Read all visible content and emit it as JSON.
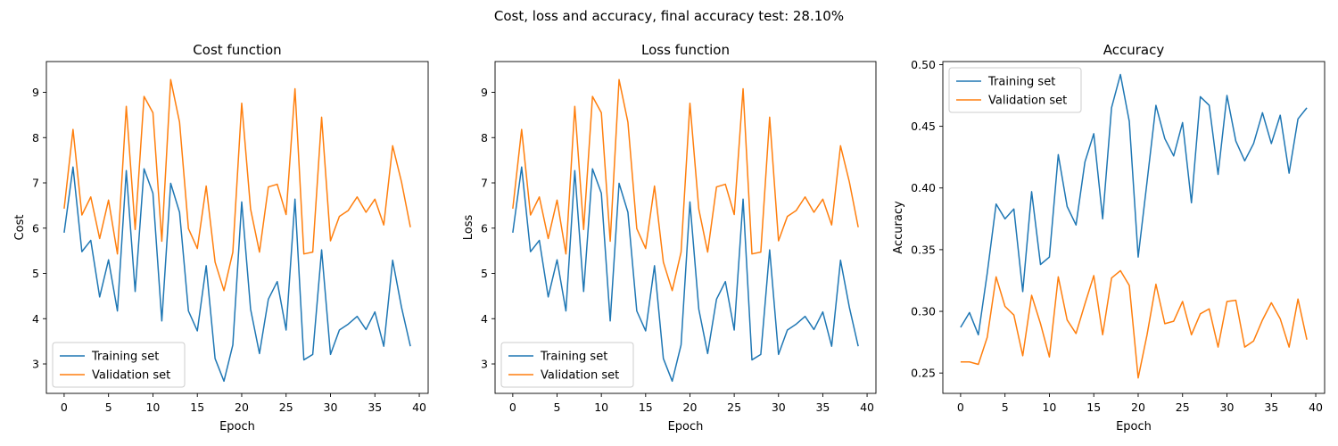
{
  "figure": {
    "suptitle": "Cost, loss and accuracy, final accuracy test: 28.10%"
  },
  "colors": {
    "training": "#1f77b4",
    "validation": "#ff7f0e"
  },
  "chart_data": [
    {
      "type": "line",
      "title": "Cost function",
      "xlabel": "Epoch",
      "ylabel": "Cost",
      "xlim": [
        -2,
        41
      ],
      "ylim": [
        2.35,
        9.68
      ],
      "xticks": [
        0,
        5,
        10,
        15,
        20,
        25,
        30,
        35,
        40
      ],
      "yticks": [
        3,
        4,
        5,
        6,
        7,
        8,
        9
      ],
      "tick_decimals": 0,
      "legend_position": "lower-left",
      "grid": false,
      "x": [
        0,
        1,
        2,
        3,
        4,
        5,
        6,
        7,
        8,
        9,
        10,
        11,
        12,
        13,
        14,
        15,
        16,
        17,
        18,
        19,
        20,
        21,
        22,
        23,
        24,
        25,
        26,
        27,
        28,
        29,
        30,
        31,
        32,
        33,
        34,
        35,
        36,
        37,
        38,
        39
      ],
      "series": [
        {
          "name": "Training set",
          "values": [
            5.9,
            7.35,
            5.48,
            5.73,
            4.48,
            5.3,
            4.17,
            7.27,
            4.6,
            7.31,
            6.77,
            3.95,
            6.99,
            6.35,
            4.17,
            3.73,
            5.17,
            3.12,
            2.62,
            3.42,
            6.58,
            4.21,
            3.23,
            4.43,
            4.82,
            3.75,
            6.64,
            3.09,
            3.21,
            5.52,
            3.21,
            3.75,
            3.88,
            4.05,
            3.76,
            4.15,
            3.39,
            5.29,
            4.25,
            3.39
          ]
        },
        {
          "name": "Validation set",
          "values": [
            6.43,
            8.18,
            6.29,
            6.69,
            5.77,
            6.62,
            5.43,
            8.69,
            5.97,
            8.91,
            8.55,
            5.71,
            9.28,
            8.34,
            5.99,
            5.55,
            6.93,
            5.25,
            4.62,
            5.47,
            8.76,
            6.42,
            5.47,
            6.91,
            6.97,
            6.3,
            9.08,
            5.43,
            5.47,
            8.45,
            5.72,
            6.26,
            6.39,
            6.69,
            6.35,
            6.64,
            6.07,
            7.82,
            7.02,
            6.02
          ]
        }
      ]
    },
    {
      "type": "line",
      "title": "Loss function",
      "xlabel": "Epoch",
      "ylabel": "Loss",
      "xlim": [
        -2,
        41
      ],
      "ylim": [
        2.35,
        9.68
      ],
      "xticks": [
        0,
        5,
        10,
        15,
        20,
        25,
        30,
        35,
        40
      ],
      "yticks": [
        3,
        4,
        5,
        6,
        7,
        8,
        9
      ],
      "tick_decimals": 0,
      "legend_position": "lower-left",
      "grid": false,
      "x": [
        0,
        1,
        2,
        3,
        4,
        5,
        6,
        7,
        8,
        9,
        10,
        11,
        12,
        13,
        14,
        15,
        16,
        17,
        18,
        19,
        20,
        21,
        22,
        23,
        24,
        25,
        26,
        27,
        28,
        29,
        30,
        31,
        32,
        33,
        34,
        35,
        36,
        37,
        38,
        39
      ],
      "series": [
        {
          "name": "Training set",
          "values": [
            5.9,
            7.35,
            5.48,
            5.73,
            4.48,
            5.3,
            4.17,
            7.27,
            4.6,
            7.31,
            6.77,
            3.95,
            6.99,
            6.35,
            4.17,
            3.73,
            5.17,
            3.12,
            2.62,
            3.42,
            6.58,
            4.21,
            3.23,
            4.43,
            4.82,
            3.75,
            6.64,
            3.09,
            3.21,
            5.52,
            3.21,
            3.75,
            3.88,
            4.05,
            3.76,
            4.15,
            3.39,
            5.29,
            4.25,
            3.39
          ]
        },
        {
          "name": "Validation set",
          "values": [
            6.43,
            8.18,
            6.29,
            6.69,
            5.77,
            6.62,
            5.43,
            8.69,
            5.97,
            8.91,
            8.55,
            5.71,
            9.28,
            8.34,
            5.99,
            5.55,
            6.93,
            5.25,
            4.62,
            5.47,
            8.76,
            6.42,
            5.47,
            6.91,
            6.97,
            6.3,
            9.08,
            5.43,
            5.47,
            8.45,
            5.72,
            6.26,
            6.39,
            6.69,
            6.35,
            6.64,
            6.07,
            7.82,
            7.02,
            6.02
          ]
        }
      ]
    },
    {
      "type": "line",
      "title": "Accuracy",
      "xlabel": "Epoch",
      "ylabel": "Accuracy",
      "xlim": [
        -2,
        41
      ],
      "ylim": [
        0.2335,
        0.5025
      ],
      "xticks": [
        0,
        5,
        10,
        15,
        20,
        25,
        30,
        35,
        40
      ],
      "yticks": [
        0.25,
        0.3,
        0.35,
        0.4,
        0.45,
        0.5
      ],
      "tick_decimals": 2,
      "legend_position": "upper-left",
      "grid": false,
      "x": [
        0,
        1,
        2,
        3,
        4,
        5,
        6,
        7,
        8,
        9,
        10,
        11,
        12,
        13,
        14,
        15,
        16,
        17,
        18,
        19,
        20,
        21,
        22,
        23,
        24,
        25,
        26,
        27,
        28,
        29,
        30,
        31,
        32,
        33,
        34,
        35,
        36,
        37,
        38,
        39
      ],
      "series": [
        {
          "name": "Training set",
          "values": [
            0.287,
            0.299,
            0.281,
            0.331,
            0.387,
            0.375,
            0.383,
            0.316,
            0.397,
            0.338,
            0.344,
            0.427,
            0.385,
            0.37,
            0.421,
            0.444,
            0.375,
            0.465,
            0.492,
            0.454,
            0.344,
            0.405,
            0.467,
            0.44,
            0.426,
            0.453,
            0.388,
            0.474,
            0.467,
            0.411,
            0.475,
            0.438,
            0.422,
            0.436,
            0.461,
            0.436,
            0.459,
            0.412,
            0.456,
            0.465
          ]
        },
        {
          "name": "Validation set",
          "values": [
            0.259,
            0.259,
            0.257,
            0.279,
            0.328,
            0.304,
            0.297,
            0.264,
            0.313,
            0.29,
            0.263,
            0.328,
            0.293,
            0.282,
            0.306,
            0.329,
            0.281,
            0.327,
            0.333,
            0.321,
            0.246,
            0.281,
            0.322,
            0.29,
            0.292,
            0.308,
            0.281,
            0.298,
            0.302,
            0.271,
            0.308,
            0.309,
            0.271,
            0.276,
            0.293,
            0.307,
            0.294,
            0.271,
            0.31,
            0.277
          ]
        }
      ]
    }
  ]
}
